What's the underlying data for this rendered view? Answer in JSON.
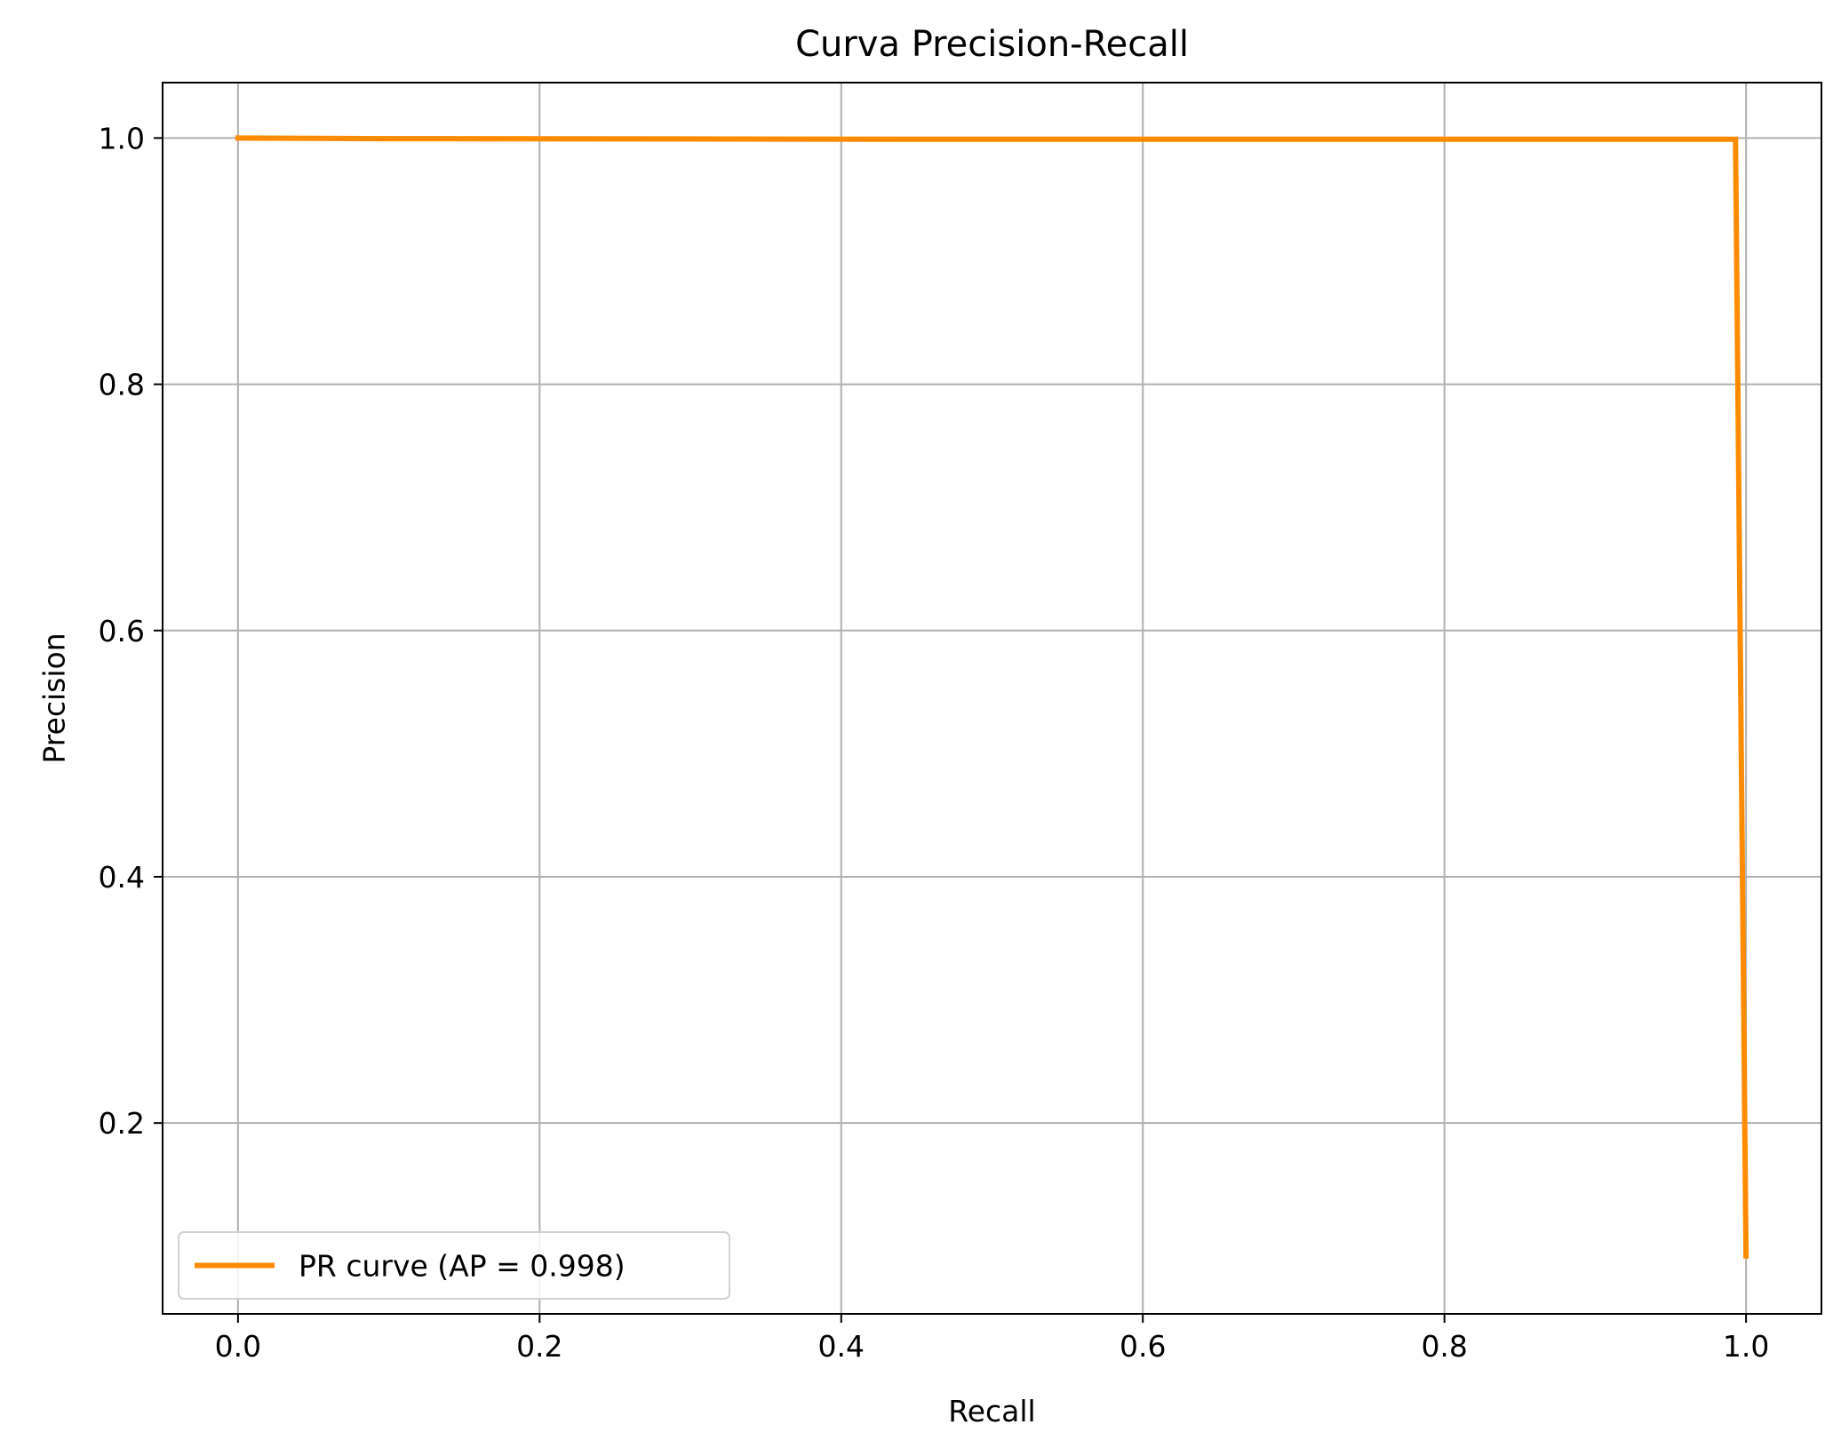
{
  "chart_data": {
    "type": "line",
    "title": "Curva Precision-Recall",
    "xlabel": "Recall",
    "ylabel": "Precision",
    "xlim": [
      -0.05,
      1.05
    ],
    "ylim": [
      0.045,
      1.045
    ],
    "x_ticks": [
      0.0,
      0.2,
      0.4,
      0.6,
      0.8,
      1.0
    ],
    "x_tick_labels": [
      "0.0",
      "0.2",
      "0.4",
      "0.6",
      "0.8",
      "1.0"
    ],
    "y_ticks": [
      0.2,
      0.4,
      0.6,
      0.8,
      1.0
    ],
    "y_tick_labels": [
      "0.2",
      "0.4",
      "0.6",
      "0.8",
      "1.0"
    ],
    "grid": true,
    "legend_position": "lower-left",
    "series": [
      {
        "name": "PR curve (AP = 0.998)",
        "color": "#ff8c00",
        "x": [
          0.0,
          0.1,
          0.5,
          0.993,
          1.0
        ],
        "y": [
          1.0,
          0.9995,
          0.999,
          0.999,
          0.092
        ]
      }
    ]
  }
}
